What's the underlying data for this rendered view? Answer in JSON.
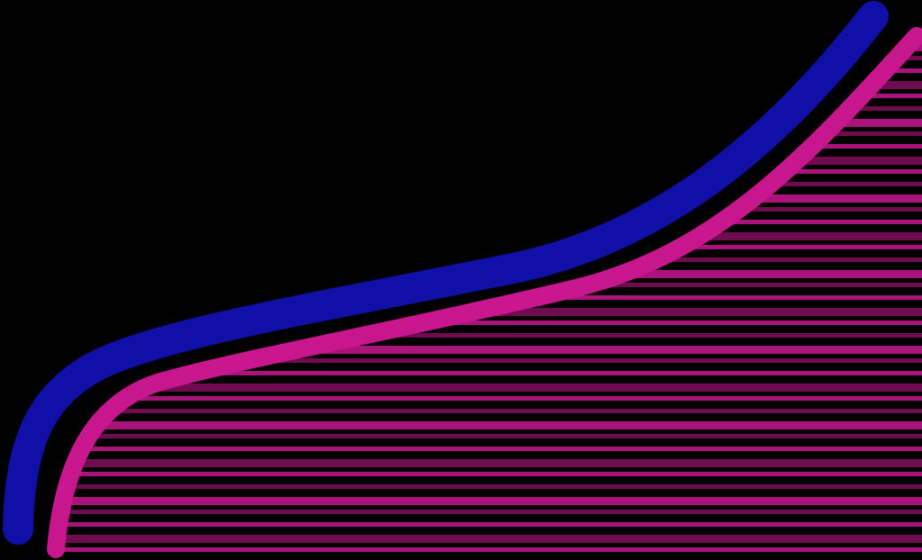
{
  "colors": {
    "background": "#000000",
    "blue_stroke": "#1010A8",
    "magenta_stroke": "#C8168F",
    "magenta_fill": "#C8168F"
  },
  "shapes": [
    {
      "name": "blue-curve",
      "kind": "stroke",
      "color_key": "blue_stroke"
    },
    {
      "name": "magenta-curve",
      "kind": "stroke",
      "color_key": "magenta_stroke"
    },
    {
      "name": "magenta-area",
      "kind": "fill",
      "color_key": "magenta_fill"
    }
  ]
}
